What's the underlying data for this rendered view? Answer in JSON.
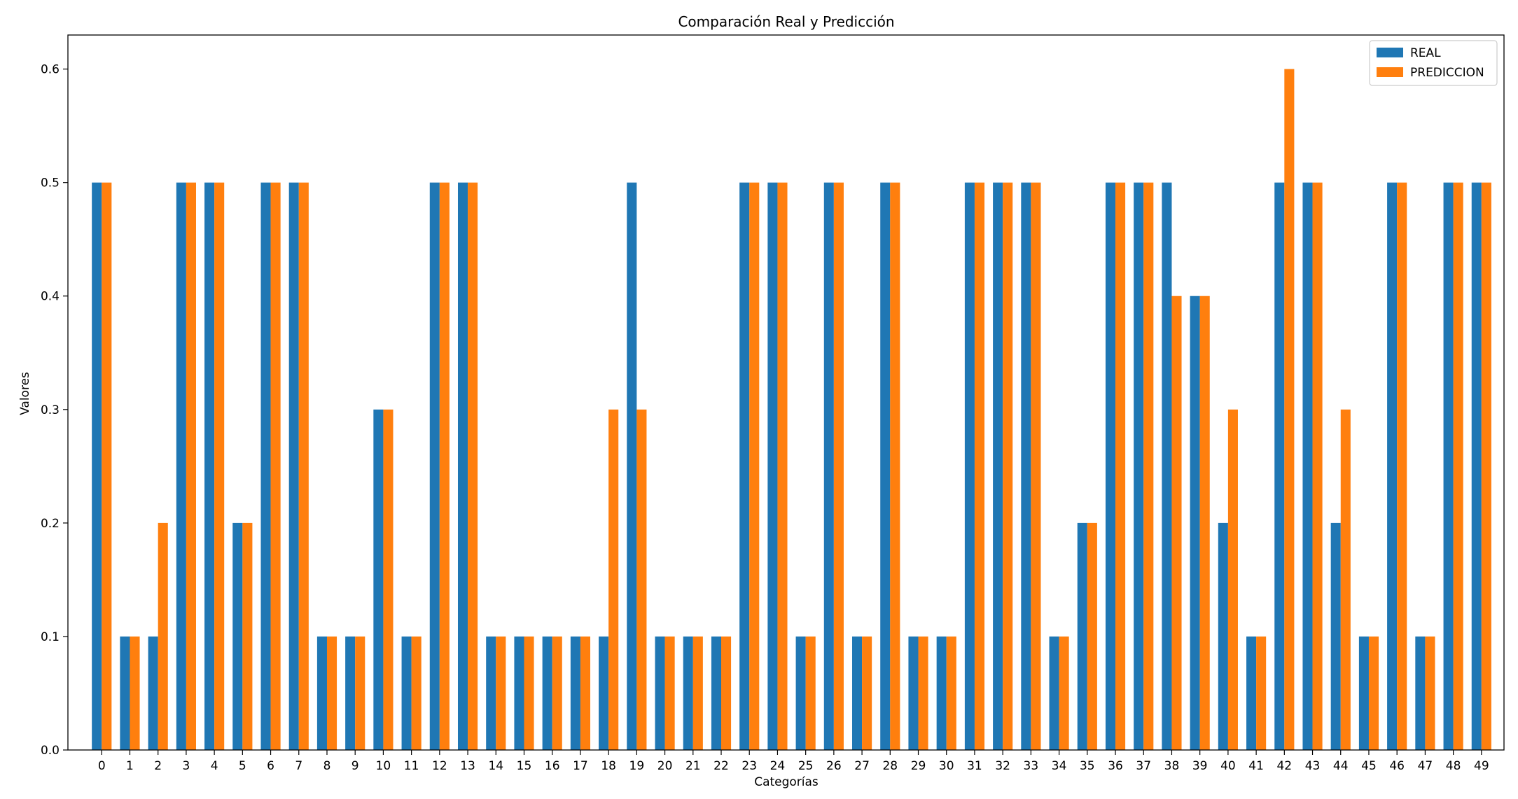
{
  "chart_data": {
    "type": "bar",
    "title": "Comparación Real y Predicción",
    "xlabel": "Categorías",
    "ylabel": "Valores",
    "ylim": [
      0,
      0.63
    ],
    "yticks": [
      0.0,
      0.1,
      0.2,
      0.3,
      0.4,
      0.5,
      0.6
    ],
    "ytick_labels": [
      "0.0",
      "0.1",
      "0.2",
      "0.3",
      "0.4",
      "0.5",
      "0.6"
    ],
    "grid": false,
    "legend_position": "top-right",
    "categories": [
      "0",
      "1",
      "2",
      "3",
      "4",
      "5",
      "6",
      "7",
      "8",
      "9",
      "10",
      "11",
      "12",
      "13",
      "14",
      "15",
      "16",
      "17",
      "18",
      "19",
      "20",
      "21",
      "22",
      "23",
      "24",
      "25",
      "26",
      "27",
      "28",
      "29",
      "30",
      "31",
      "32",
      "33",
      "34",
      "35",
      "36",
      "37",
      "38",
      "39",
      "40",
      "41",
      "42",
      "43",
      "44",
      "45",
      "46",
      "47",
      "48",
      "49"
    ],
    "series": [
      {
        "name": "REAL",
        "color": "#1f77b4",
        "values": [
          0.5,
          0.1,
          0.1,
          0.5,
          0.5,
          0.2,
          0.5,
          0.5,
          0.1,
          0.1,
          0.3,
          0.1,
          0.5,
          0.5,
          0.1,
          0.1,
          0.1,
          0.1,
          0.1,
          0.5,
          0.1,
          0.1,
          0.1,
          0.5,
          0.5,
          0.1,
          0.5,
          0.1,
          0.5,
          0.1,
          0.1,
          0.5,
          0.5,
          0.5,
          0.1,
          0.2,
          0.5,
          0.5,
          0.5,
          0.4,
          0.2,
          0.1,
          0.5,
          0.5,
          0.2,
          0.1,
          0.5,
          0.1,
          0.5,
          0.5
        ]
      },
      {
        "name": "PREDICCION",
        "color": "#ff7f0e",
        "values": [
          0.5,
          0.1,
          0.2,
          0.5,
          0.5,
          0.2,
          0.5,
          0.5,
          0.1,
          0.1,
          0.3,
          0.1,
          0.5,
          0.5,
          0.1,
          0.1,
          0.1,
          0.1,
          0.3,
          0.3,
          0.1,
          0.1,
          0.1,
          0.5,
          0.5,
          0.1,
          0.5,
          0.1,
          0.5,
          0.1,
          0.1,
          0.5,
          0.5,
          0.5,
          0.1,
          0.2,
          0.5,
          0.5,
          0.4,
          0.4,
          0.3,
          0.1,
          0.6,
          0.5,
          0.3,
          0.1,
          0.5,
          0.1,
          0.5,
          0.5
        ]
      }
    ]
  }
}
